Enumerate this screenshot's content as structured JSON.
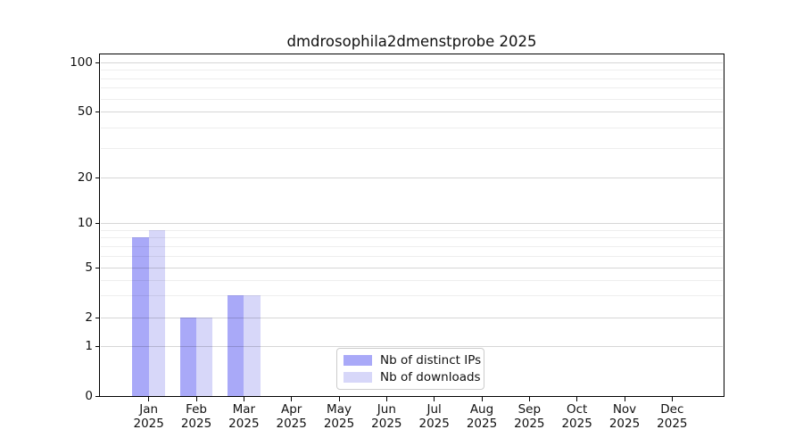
{
  "chart_data": {
    "type": "bar",
    "title": "dmdrosophila2dmenstprobe 2025",
    "categories": [
      "Jan",
      "Feb",
      "Mar",
      "Apr",
      "May",
      "Jun",
      "Jul",
      "Aug",
      "Sep",
      "Oct",
      "Nov",
      "Dec"
    ],
    "x_tick_year": "2025",
    "series": [
      {
        "name": "Nb of distinct IPs",
        "color": "#a9a9f8",
        "values": [
          8,
          2,
          3,
          0,
          0,
          0,
          0,
          0,
          0,
          0,
          0,
          0
        ]
      },
      {
        "name": "Nb of downloads",
        "color": "#d7d7f9",
        "values": [
          9,
          2,
          3,
          0,
          0,
          0,
          0,
          0,
          0,
          0,
          0,
          0
        ]
      }
    ],
    "yaxis": {
      "scale": "symlog",
      "major_ticks": [
        0,
        1,
        2,
        5,
        10,
        20,
        50,
        100
      ],
      "minor_ticks": [
        3,
        4,
        6,
        7,
        8,
        9,
        30,
        40,
        60,
        70,
        80,
        90
      ],
      "range": [
        0,
        112
      ],
      "grid": "on"
    },
    "xlabel": "",
    "ylabel": "",
    "legend": {
      "position": "lower center",
      "entries": [
        "Nb of distinct IPs",
        "Nb of downloads"
      ]
    }
  }
}
